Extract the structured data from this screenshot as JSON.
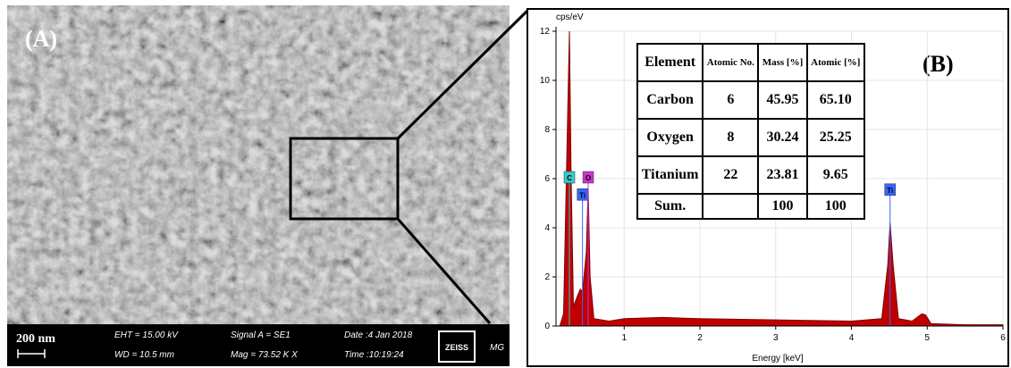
{
  "panel_a": {
    "label": "(A)",
    "scale_bar": "200 nm",
    "info": [
      "EHT = 15.00 kV",
      "WD = 10.5 mm",
      "Signal A = SE1",
      "Mag =  73.52 K X",
      "Date :4 Jan 2018",
      "Time :10:19:24"
    ],
    "brand": "ZEISS",
    "tag": "MG"
  },
  "chart_data": {
    "type": "area",
    "label": "(B)",
    "y_label": "cps/eV",
    "x_label": "Energy [keV]",
    "color": "#c00000",
    "grid": true,
    "x": [
      0.15,
      0.2,
      0.25,
      0.277,
      0.3,
      0.33,
      0.38,
      0.42,
      0.45,
      0.5,
      0.525,
      0.55,
      0.6,
      0.8,
      1.0,
      1.5,
      2.0,
      3.0,
      4.0,
      4.4,
      4.48,
      4.51,
      4.55,
      4.62,
      4.8,
      4.93,
      4.98,
      5.05,
      5.5,
      6.0
    ],
    "values": [
      0,
      0.5,
      8,
      12,
      6,
      0.8,
      1.2,
      1.5,
      1.4,
      3,
      5.6,
      2,
      0.3,
      0.2,
      0.3,
      0.35,
      0.3,
      0.25,
      0.2,
      0.3,
      2.5,
      4.2,
      2.5,
      0.3,
      0.2,
      0.5,
      0.45,
      0.1,
      0.05,
      0.05
    ],
    "xlim": [
      0.1,
      6
    ],
    "xticks": [
      1,
      2,
      3,
      4,
      5,
      6
    ],
    "ylim": [
      0,
      12
    ],
    "yticks": [
      0,
      2,
      4,
      6,
      8,
      10,
      12
    ],
    "peak_labels": [
      {
        "text": "C",
        "x": 0.277,
        "y": 6,
        "color": "#33cccc"
      },
      {
        "text": "Ti",
        "x": 0.45,
        "y": 5.3,
        "color": "#3366ff"
      },
      {
        "text": "O",
        "x": 0.525,
        "y": 6,
        "color": "#cc33cc"
      },
      {
        "text": "Ti",
        "x": 4.51,
        "y": 5.5,
        "color": "#3366ff"
      }
    ]
  },
  "table": {
    "header": [
      "Element",
      "Atomic No.",
      "Mass [%]",
      "Atomic [%]"
    ],
    "rows": [
      [
        "Carbon",
        "6",
        "45.95",
        "65.10"
      ],
      [
        "Oxygen",
        "8",
        "30.24",
        "25.25"
      ],
      [
        "Titanium",
        "22",
        "23.81",
        "9.65"
      ]
    ],
    "sum": {
      "label": "Sum.",
      "mass": "100",
      "atomic": "100"
    }
  }
}
